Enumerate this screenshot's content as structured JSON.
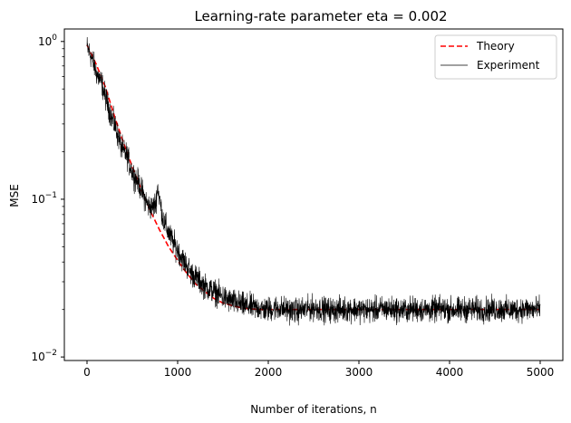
{
  "chart_data": {
    "type": "line",
    "title": "Learning-rate parameter eta = 0.002",
    "xlabel": "Number of iterations, n",
    "ylabel": "MSE",
    "xlim": [
      -250,
      5250
    ],
    "ylim": [
      0.0095,
      1.2
    ],
    "yscale": "log",
    "x_ticks": [
      0,
      1000,
      2000,
      3000,
      4000,
      5000
    ],
    "x_tick_labels": [
      "0",
      "1000",
      "2000",
      "3000",
      "4000",
      "5000"
    ],
    "y_ticks": [
      0.01,
      0.1,
      1
    ],
    "y_tick_labels": [
      "10",
      "10",
      "10"
    ],
    "y_tick_exponents": [
      "−2",
      "−1",
      "0"
    ],
    "grid": false,
    "legend_position": "upper-right",
    "series": [
      {
        "name": "Theory",
        "style": "dashed",
        "color": "#ff0000",
        "x": [
          0,
          100,
          200,
          300,
          400,
          500,
          600,
          700,
          800,
          900,
          1000,
          1100,
          1200,
          1300,
          1400,
          1500,
          1600,
          1700,
          1800,
          1900,
          2000,
          2500,
          3000,
          3500,
          4000,
          4500,
          5000
        ],
        "y": [
          0.95,
          0.72,
          0.52,
          0.34,
          0.23,
          0.16,
          0.115,
          0.084,
          0.064,
          0.05,
          0.041,
          0.034,
          0.029,
          0.026,
          0.0235,
          0.022,
          0.0212,
          0.0205,
          0.0202,
          0.02,
          0.02,
          0.02,
          0.02,
          0.02,
          0.02,
          0.02,
          0.02
        ]
      },
      {
        "name": "Experiment",
        "style": "solid",
        "color": "#000000",
        "x": [
          0,
          40,
          80,
          120,
          160,
          200,
          240,
          280,
          320,
          360,
          400,
          440,
          480,
          520,
          560,
          600,
          640,
          680,
          720,
          760,
          780,
          800,
          840,
          880,
          920,
          960,
          1000,
          1050,
          1100,
          1150,
          1200,
          1250,
          1300,
          1350,
          1400,
          1450,
          1500,
          1550,
          1600,
          1650,
          1700,
          1750,
          1800,
          1850,
          1900,
          1950,
          2000,
          2100,
          2200,
          2300,
          2400,
          2500,
          2600,
          2700,
          2800,
          2900,
          3000,
          3100,
          3200,
          3300,
          3400,
          3500,
          3600,
          3700,
          3800,
          3900,
          4000,
          4100,
          4200,
          4300,
          4400,
          4500,
          4600,
          4700,
          4800,
          4900,
          5000
        ],
        "y": [
          0.92,
          0.82,
          0.7,
          0.6,
          0.55,
          0.45,
          0.38,
          0.32,
          0.28,
          0.23,
          0.2,
          0.19,
          0.16,
          0.14,
          0.13,
          0.115,
          0.1,
          0.09,
          0.088,
          0.095,
          0.12,
          0.1,
          0.075,
          0.065,
          0.058,
          0.052,
          0.048,
          0.042,
          0.038,
          0.034,
          0.032,
          0.03,
          0.028,
          0.027,
          0.026,
          0.025,
          0.024,
          0.023,
          0.0225,
          0.022,
          0.0215,
          0.021,
          0.021,
          0.0205,
          0.0205,
          0.02,
          0.02,
          0.0205,
          0.02,
          0.0195,
          0.02,
          0.0205,
          0.02,
          0.0198,
          0.02,
          0.0202,
          0.02,
          0.0198,
          0.02,
          0.0202,
          0.02,
          0.0197,
          0.0201,
          0.02,
          0.0199,
          0.0202,
          0.02,
          0.0198,
          0.0201,
          0.02,
          0.0199,
          0.0201,
          0.02,
          0.0198,
          0.0202,
          0.02,
          0.02
        ]
      }
    ]
  }
}
